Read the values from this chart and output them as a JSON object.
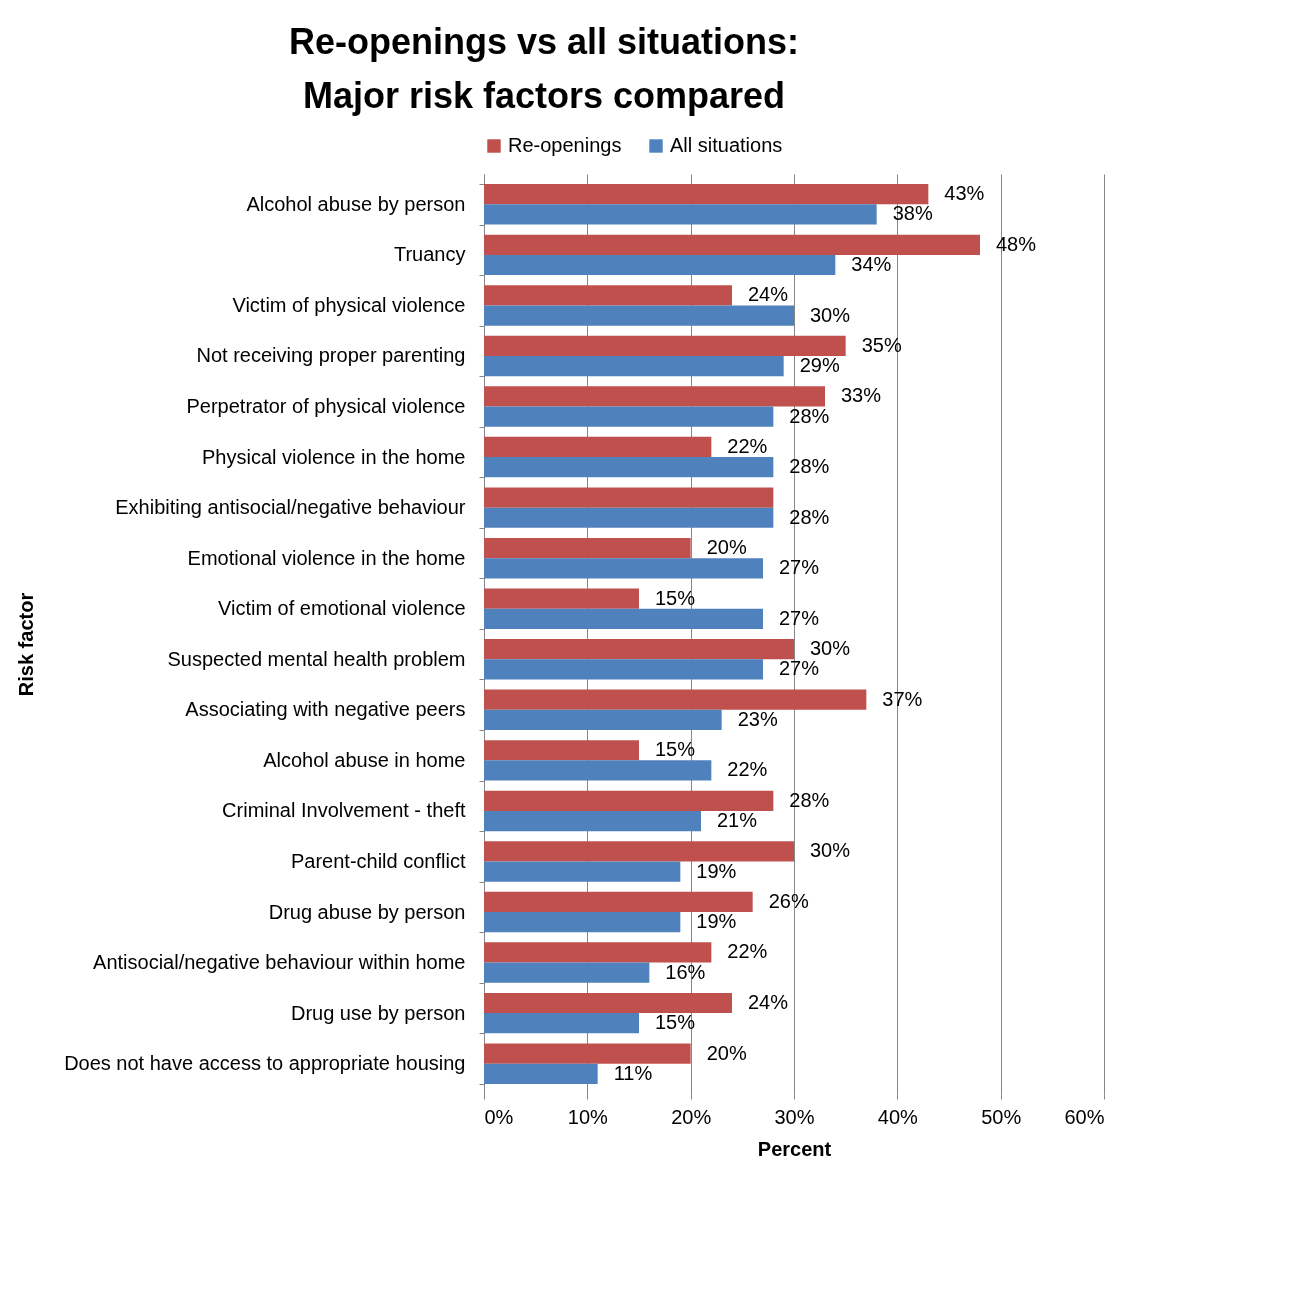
{
  "chart_data": {
    "type": "bar",
    "orientation": "horizontal",
    "title": [
      "Re-openings vs all situations:",
      "Major risk factors compared"
    ],
    "xlabel": "Percent",
    "ylabel": "Risk factor",
    "categories": [
      "Alcohol abuse by person",
      "Truancy",
      "Victim of physical violence",
      "Not receiving proper parenting",
      "Perpetrator of physical violence",
      "Physical violence in the home",
      "Exhibiting antisocial/negative behaviour",
      "Emotional violence in the home",
      "Victim of emotional violence",
      "Suspected mental health problem",
      "Associating with negative peers",
      "Alcohol abuse in home",
      "Criminal Involvement - theft",
      "Parent-child conflict",
      "Drug abuse by person",
      "Antisocial/negative behaviour within home",
      "Drug use by person",
      "Does not have access to appropriate housing"
    ],
    "series": [
      {
        "name": "Re-openings",
        "color": "#c0504d",
        "values": [
          43,
          48,
          24,
          35,
          33,
          22,
          28,
          20,
          15,
          30,
          37,
          15,
          28,
          30,
          26,
          22,
          24,
          20
        ],
        "value_labels": [
          "43%",
          "48%",
          "24%",
          "35%",
          "33%",
          "22%",
          null,
          "20%",
          "15%",
          "30%",
          "37%",
          "15%",
          "28%",
          "30%",
          "26%",
          "22%",
          "24%",
          "20%"
        ]
      },
      {
        "name": "All situations",
        "color": "#4f81bd",
        "values": [
          38,
          34,
          30,
          29,
          28,
          28,
          28,
          27,
          27,
          27,
          23,
          22,
          21,
          19,
          19,
          16,
          15,
          11
        ],
        "value_labels": [
          "38%",
          "34%",
          "30%",
          "29%",
          "28%",
          "28%",
          "28%",
          "27%",
          "27%",
          "27%",
          "23%",
          "22%",
          "21%",
          "19%",
          "19%",
          "16%",
          "15%",
          "11%"
        ]
      }
    ],
    "xlim": [
      0,
      60
    ],
    "xticks": [
      {
        "value": 0,
        "label": "0%"
      },
      {
        "value": 10,
        "label": "10%"
      },
      {
        "value": 20,
        "label": "20%"
      },
      {
        "value": 30,
        "label": "30%"
      },
      {
        "value": 40,
        "label": "40%"
      },
      {
        "value": 50,
        "label": "50%"
      },
      {
        "value": 60,
        "label": "60%"
      }
    ],
    "grid": "x",
    "legend": "top"
  }
}
